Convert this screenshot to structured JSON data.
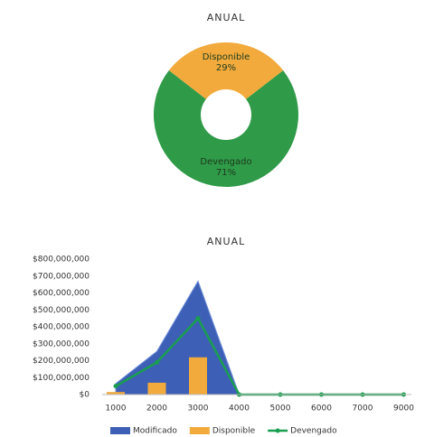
{
  "chart_data": [
    {
      "type": "pie",
      "title": "ANUAL",
      "categories": [
        "Disponible",
        "Devengado"
      ],
      "values": [
        29,
        71
      ],
      "value_labels": [
        "29%",
        "71%"
      ],
      "colors": [
        "#f2aa3c",
        "#2f9a48"
      ],
      "donut": true
    },
    {
      "type": "combo",
      "title": "ANUAL",
      "categories": [
        "1000",
        "2000",
        "3000",
        "4000",
        "5000",
        "6000",
        "7000",
        "9000"
      ],
      "series": [
        {
          "name": "Modificado",
          "type": "area",
          "color": "#3d5fb6",
          "values": [
            65000000,
            255000000,
            670000000,
            0,
            0,
            0,
            0,
            0
          ]
        },
        {
          "name": "Disponible",
          "type": "bar",
          "color": "#f2aa3c",
          "values": [
            15000000,
            70000000,
            220000000,
            0,
            0,
            0,
            0,
            0
          ]
        },
        {
          "name": "Devengado",
          "type": "line",
          "color": "#1a9e50",
          "values": [
            50000000,
            190000000,
            450000000,
            0,
            0,
            0,
            0,
            0
          ]
        }
      ],
      "ylim": [
        0,
        800000000
      ],
      "yticks": [
        {
          "value": 0,
          "label": "$0"
        },
        {
          "value": 100000000,
          "label": "$100,000,000"
        },
        {
          "value": 200000000,
          "label": "$200,000,000"
        },
        {
          "value": 300000000,
          "label": "$300,000,000"
        },
        {
          "value": 400000000,
          "label": "$400,000,000"
        },
        {
          "value": 500000000,
          "label": "$500,000,000"
        },
        {
          "value": 600000000,
          "label": "$600,000,000"
        },
        {
          "value": 700000000,
          "label": "$700,000,000"
        },
        {
          "value": 800000000,
          "label": "$800,000,000"
        }
      ],
      "grid": false,
      "legend": "bottom"
    }
  ]
}
